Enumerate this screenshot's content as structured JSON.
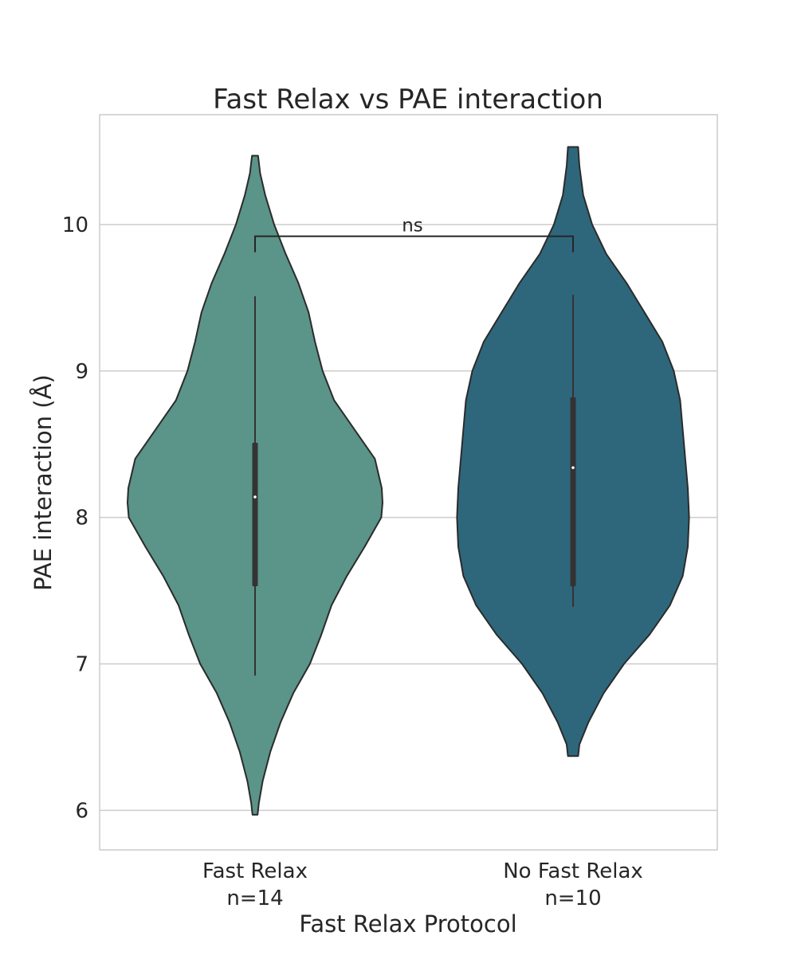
{
  "chart_data": {
    "type": "violin",
    "title": "Fast Relax vs PAE interaction",
    "xlabel": "Fast Relax Protocol",
    "ylabel": "PAE interaction (Å)",
    "ylim": [
      5.73,
      10.75
    ],
    "yticks": [
      6,
      7,
      8,
      9,
      10
    ],
    "grid": "horizontal",
    "legend": "none",
    "categories": [
      {
        "label": "Fast Relax",
        "count_label": "n=14"
      },
      {
        "label": "No Fast Relax",
        "count_label": "n=10"
      }
    ],
    "series": [
      {
        "category": "Fast Relax",
        "color": "#5b9489",
        "min": 6.92,
        "q1": 7.53,
        "median": 8.14,
        "q3": 8.51,
        "max": 9.51,
        "density": [
          [
            5.97,
            0.01
          ],
          [
            6.05,
            0.015
          ],
          [
            6.2,
            0.03
          ],
          [
            6.4,
            0.06
          ],
          [
            6.6,
            0.1
          ],
          [
            6.8,
            0.15
          ],
          [
            7.0,
            0.215
          ],
          [
            7.2,
            0.26
          ],
          [
            7.4,
            0.3
          ],
          [
            7.6,
            0.36
          ],
          [
            7.8,
            0.43
          ],
          [
            8.0,
            0.495
          ],
          [
            8.1,
            0.5
          ],
          [
            8.2,
            0.497
          ],
          [
            8.4,
            0.47
          ],
          [
            8.6,
            0.39
          ],
          [
            8.8,
            0.31
          ],
          [
            9.0,
            0.265
          ],
          [
            9.2,
            0.235
          ],
          [
            9.4,
            0.21
          ],
          [
            9.6,
            0.17
          ],
          [
            9.8,
            0.12
          ],
          [
            10.0,
            0.075
          ],
          [
            10.2,
            0.04
          ],
          [
            10.35,
            0.02
          ],
          [
            10.47,
            0.012
          ]
        ]
      },
      {
        "category": "No Fast Relax",
        "color": "#2e677c",
        "min": 7.39,
        "q1": 7.53,
        "median": 8.34,
        "q3": 8.82,
        "max": 9.52,
        "density": [
          [
            6.37,
            0.02
          ],
          [
            6.45,
            0.025
          ],
          [
            6.6,
            0.06
          ],
          [
            6.8,
            0.12
          ],
          [
            7.0,
            0.2
          ],
          [
            7.2,
            0.3
          ],
          [
            7.4,
            0.38
          ],
          [
            7.6,
            0.43
          ],
          [
            7.8,
            0.45
          ],
          [
            8.0,
            0.455
          ],
          [
            8.2,
            0.45
          ],
          [
            8.4,
            0.44
          ],
          [
            8.6,
            0.43
          ],
          [
            8.8,
            0.42
          ],
          [
            9.0,
            0.395
          ],
          [
            9.2,
            0.35
          ],
          [
            9.4,
            0.28
          ],
          [
            9.6,
            0.21
          ],
          [
            9.8,
            0.13
          ],
          [
            10.0,
            0.075
          ],
          [
            10.2,
            0.04
          ],
          [
            10.4,
            0.025
          ],
          [
            10.53,
            0.02
          ]
        ]
      }
    ],
    "annotations": [
      {
        "text": "ns",
        "from": "Fast Relax",
        "to": "No Fast Relax",
        "y": 9.92
      }
    ]
  }
}
